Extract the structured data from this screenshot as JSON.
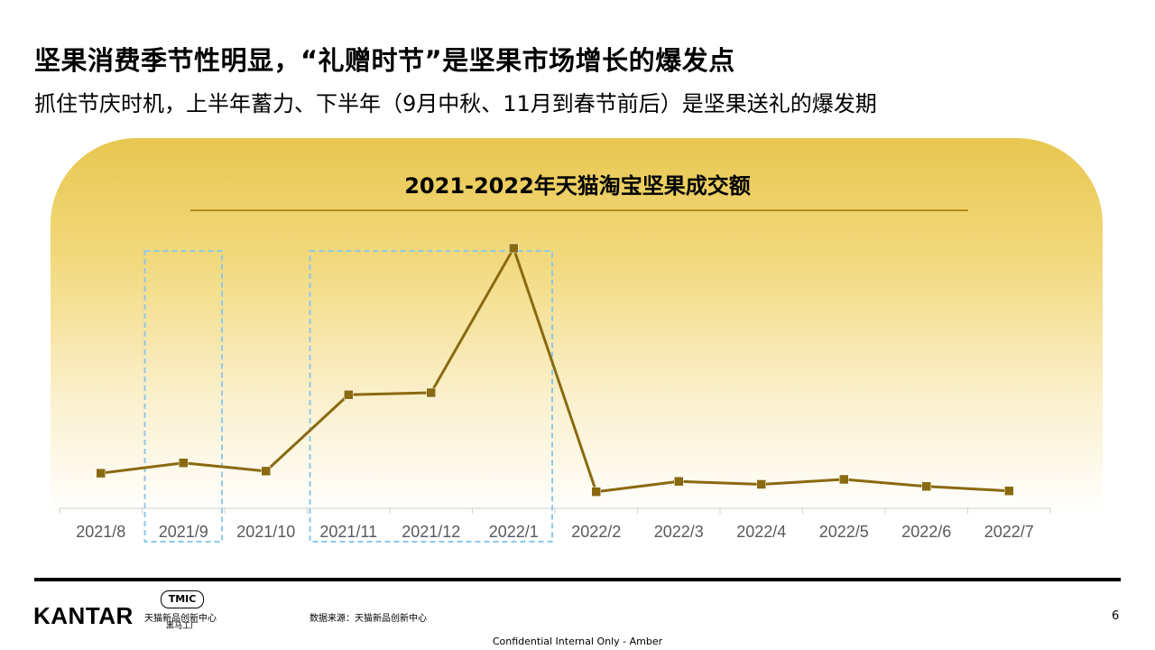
{
  "headline": "坚果消费季节性明显，“礼赠时节”是坚果市场增长的爆发点",
  "subline": "抓住节庆时机，上半年蓄力、下半年（9月中秋、11月到春节前后）是坚果送礼的爆发期",
  "colors": {
    "line": "#8a6a10",
    "marker": "#8a6a10",
    "highlight_box": "#8ec8e8",
    "band_top": "#e8c750",
    "title_rule": "#b58a14"
  },
  "chart_data": {
    "type": "line",
    "title": "2021-2022年天猫淘宝坚果成交额",
    "categories": [
      "2021/8",
      "2021/9",
      "2021/10",
      "2021/11",
      "2021/12",
      "2022/1",
      "2022/2",
      "2022/3",
      "2022/4",
      "2022/5",
      "2022/6",
      "2022/7"
    ],
    "values": [
      8.5,
      11,
      9,
      27.5,
      28,
      63,
      4,
      6.5,
      5.8,
      7,
      5.3,
      4.2
    ],
    "ylim": [
      0,
      70
    ],
    "value_axis_visible": false,
    "grid": false,
    "highlight_ranges": [
      {
        "from": "2021/9",
        "to": "2021/9"
      },
      {
        "from": "2021/11",
        "to": "2022/1"
      }
    ]
  },
  "footer": {
    "logo": "KANTAR",
    "partner_badge": "TMIC",
    "partner_line1": "天猫新品创新中心",
    "partner_line2": "黑马工厂",
    "source": "数据来源：天猫新品创新中心",
    "page_number": "6",
    "confidential": "Confidential Internal Only - Amber"
  }
}
